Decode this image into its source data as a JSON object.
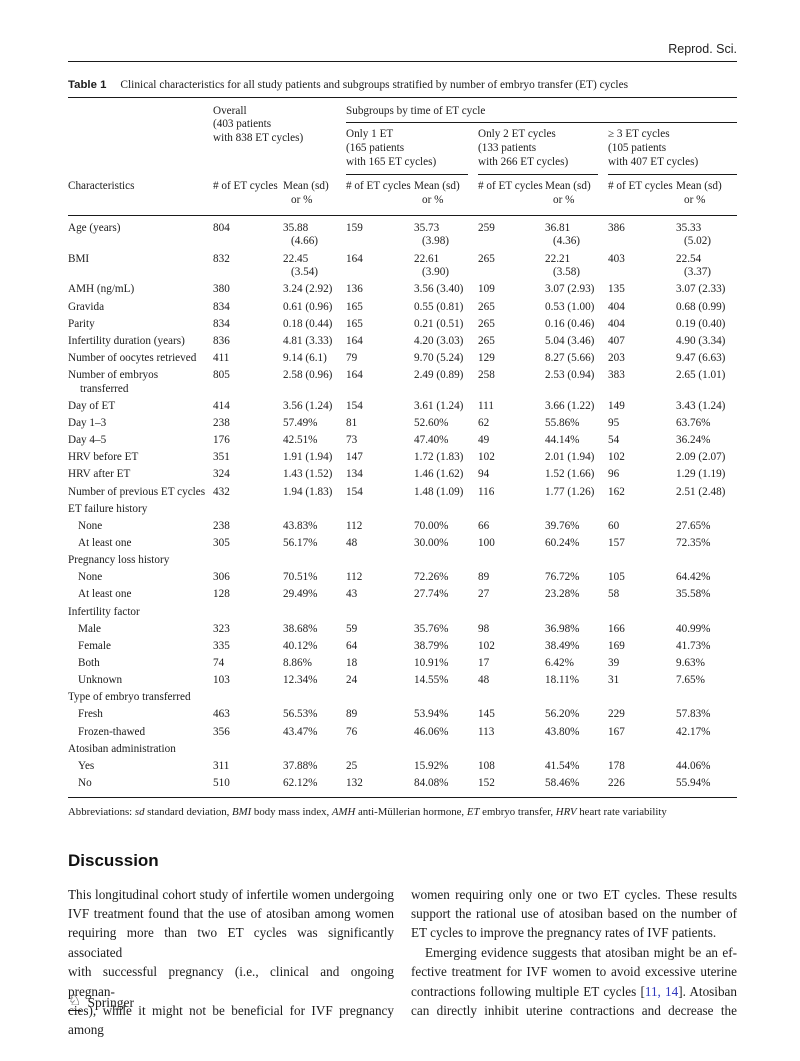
{
  "colors": {
    "citation": "#3038bd",
    "text": "#1c1c1c",
    "rule": "#1a1a1a"
  },
  "header": {
    "journal": "Reprod. Sci."
  },
  "table": {
    "label": "Table 1",
    "caption": "Clinical characteristics for all study patients and subgroups stratified by number of embryo transfer (ET) cycles",
    "overall_header": "Overall\n(403 patients\nwith 838 ET cycles)",
    "subgroups_title": "Subgroups by time of ET cycle",
    "subgroup_headers": [
      "Only 1 ET\n(165 patients\nwith 165 ET cycles)",
      "Only 2 ET cycles\n(133 patients\nwith 266 ET cycles)",
      "≥ 3 ET cycles\n(105 patients\nwith 407 ET cycles)"
    ],
    "characteristics_header": "Characteristics",
    "n_header": "# of ET cycles",
    "mean_header": "Mean (sd)\nor %",
    "rows": [
      {
        "label": "Age (years)",
        "cells": [
          "804",
          "35.88\n(4.66)",
          "159",
          "35.73\n(3.98)",
          "259",
          "36.81\n(4.36)",
          "386",
          "35.33\n(5.02)"
        ]
      },
      {
        "label": "BMI",
        "cells": [
          "832",
          "22.45\n(3.54)",
          "164",
          "22.61\n(3.90)",
          "265",
          "22.21\n(3.58)",
          "403",
          "22.54\n(3.37)"
        ]
      },
      {
        "label": "AMH (ng/mL)",
        "cells": [
          "380",
          "3.24 (2.92)",
          "136",
          "3.56 (3.40)",
          "109",
          "3.07 (2.93)",
          "135",
          "3.07 (2.33)"
        ]
      },
      {
        "label": "Gravida",
        "cells": [
          "834",
          "0.61 (0.96)",
          "165",
          "0.55 (0.81)",
          "265",
          "0.53 (1.00)",
          "404",
          "0.68 (0.99)"
        ]
      },
      {
        "label": "Parity",
        "cells": [
          "834",
          "0.18 (0.44)",
          "165",
          "0.21 (0.51)",
          "265",
          "0.16 (0.46)",
          "404",
          "0.19 (0.40)"
        ]
      },
      {
        "label": "Infertility duration (years)",
        "cells": [
          "836",
          "4.81 (3.33)",
          "164",
          "4.20 (3.03)",
          "265",
          "5.04 (3.46)",
          "407",
          "4.90 (3.34)"
        ]
      },
      {
        "label": "Number of oocytes retrieved",
        "cells": [
          "411",
          "9.14 (6.1)",
          "79",
          "9.70 (5.24)",
          "129",
          "8.27 (5.66)",
          "203",
          "9.47 (6.63)"
        ]
      },
      {
        "label": "Number of embryos\ntransferred",
        "cells": [
          "805",
          "2.58 (0.96)",
          "164",
          "2.49 (0.89)",
          "258",
          "2.53 (0.94)",
          "383",
          "2.65 (1.01)"
        ]
      },
      {
        "label": "Day of ET",
        "cells": [
          "414",
          "3.56 (1.24)",
          "154",
          "3.61 (1.24)",
          "111",
          "3.66 (1.22)",
          "149",
          "3.43 (1.24)"
        ]
      },
      {
        "label": "Day 1–3",
        "cells": [
          "238",
          "57.49%",
          "81",
          "52.60%",
          "62",
          "55.86%",
          "95",
          "63.76%"
        ]
      },
      {
        "label": "Day 4–5",
        "cells": [
          "176",
          "42.51%",
          "73",
          "47.40%",
          "49",
          "44.14%",
          "54",
          "36.24%"
        ]
      },
      {
        "label": "HRV before ET",
        "cells": [
          "351",
          "1.91 (1.94)",
          "147",
          "1.72 (1.83)",
          "102",
          "2.01 (1.94)",
          "102",
          "2.09 (2.07)"
        ]
      },
      {
        "label": "HRV after ET",
        "cells": [
          "324",
          "1.43 (1.52)",
          "134",
          "1.46 (1.62)",
          "94",
          "1.52 (1.66)",
          "96",
          "1.29 (1.19)"
        ]
      },
      {
        "label": "Number of previous ET cycles",
        "cells": [
          "432",
          "1.94 (1.83)",
          "154",
          "1.48 (1.09)",
          "116",
          "1.77 (1.26)",
          "162",
          "2.51 (2.48)"
        ]
      },
      {
        "label": "ET failure history",
        "section": true
      },
      {
        "label": "None",
        "indent": true,
        "cells": [
          "238",
          "43.83%",
          "112",
          "70.00%",
          "66",
          "39.76%",
          "60",
          "27.65%"
        ]
      },
      {
        "label": "At least one",
        "indent": true,
        "cells": [
          "305",
          "56.17%",
          "48",
          "30.00%",
          "100",
          "60.24%",
          "157",
          "72.35%"
        ]
      },
      {
        "label": "Pregnancy loss history",
        "section": true
      },
      {
        "label": "None",
        "indent": true,
        "cells": [
          "306",
          "70.51%",
          "112",
          "72.26%",
          "89",
          "76.72%",
          "105",
          "64.42%"
        ]
      },
      {
        "label": "At least one",
        "indent": true,
        "cells": [
          "128",
          "29.49%",
          "43",
          "27.74%",
          "27",
          "23.28%",
          "58",
          "35.58%"
        ]
      },
      {
        "label": "Infertility factor",
        "section": true
      },
      {
        "label": "Male",
        "indent": true,
        "cells": [
          "323",
          "38.68%",
          "59",
          "35.76%",
          "98",
          "36.98%",
          "166",
          "40.99%"
        ]
      },
      {
        "label": "Female",
        "indent": true,
        "cells": [
          "335",
          "40.12%",
          "64",
          "38.79%",
          "102",
          "38.49%",
          "169",
          "41.73%"
        ]
      },
      {
        "label": "Both",
        "indent": true,
        "cells": [
          "74",
          "8.86%",
          "18",
          "10.91%",
          "17",
          "6.42%",
          "39",
          "9.63%"
        ]
      },
      {
        "label": "Unknown",
        "indent": true,
        "cells": [
          "103",
          "12.34%",
          "24",
          "14.55%",
          "48",
          "18.11%",
          "31",
          "7.65%"
        ]
      },
      {
        "label": "Type of embryo transferred",
        "section": true
      },
      {
        "label": "Fresh",
        "indent": true,
        "cells": [
          "463",
          "56.53%",
          "89",
          "53.94%",
          "145",
          "56.20%",
          "229",
          "57.83%"
        ]
      },
      {
        "label": "Frozen-thawed",
        "indent": true,
        "cells": [
          "356",
          "43.47%",
          "76",
          "46.06%",
          "113",
          "43.80%",
          "167",
          "42.17%"
        ]
      },
      {
        "label": "Atosiban administration",
        "section": true
      },
      {
        "label": "Yes",
        "indent": true,
        "cells": [
          "311",
          "37.88%",
          "25",
          "15.92%",
          "108",
          "41.54%",
          "178",
          "44.06%"
        ]
      },
      {
        "label": "No",
        "indent": true,
        "cells": [
          "510",
          "62.12%",
          "132",
          "84.08%",
          "152",
          "58.46%",
          "226",
          "55.94%"
        ]
      }
    ],
    "footnote_segments": [
      {
        "t": "Abbreviations: "
      },
      {
        "t": "sd",
        "i": true
      },
      {
        "t": " standard deviation, "
      },
      {
        "t": "BMI",
        "i": true
      },
      {
        "t": " body mass index, "
      },
      {
        "t": "AMH",
        "i": true
      },
      {
        "t": " anti-Müllerian hormone, "
      },
      {
        "t": "ET",
        "i": true
      },
      {
        "t": " embryo transfer, "
      },
      {
        "t": "HRV",
        "i": true
      },
      {
        "t": " heart rate variability"
      }
    ]
  },
  "discussion": {
    "heading": "Discussion",
    "left_column_lines": [
      {
        "segs": [
          {
            "t": "This longitudinal cohort study of infertile women undergoing"
          }
        ]
      },
      {
        "segs": [
          {
            "t": "IVF treatment found that the use of atosiban among women"
          }
        ]
      },
      {
        "segs": [
          {
            "t": "requiring more than two ET cycles was significantly associated"
          }
        ]
      },
      {
        "segs": [
          {
            "t": "with successful pregnancy (i.e., clinical and ongoing pregnan-"
          }
        ]
      },
      {
        "segs": [
          {
            "t": "cies), while it might not be beneficial for IVF pregnancy among"
          }
        ]
      }
    ],
    "right_column_lines": [
      {
        "segs": [
          {
            "t": "women requiring only one or two ET cycles. These results"
          }
        ]
      },
      {
        "segs": [
          {
            "t": "support the rational use of atosiban based on the number of"
          }
        ]
      },
      {
        "last": true,
        "segs": [
          {
            "t": "ET cycles to improve the pregnancy rates of IVF patients."
          }
        ]
      },
      {
        "indent": true,
        "segs": [
          {
            "t": "Emerging evidence suggests that atosiban might be an ef-"
          }
        ]
      },
      {
        "segs": [
          {
            "t": "fective treatment for IVF women to avoid excessive uterine"
          }
        ]
      },
      {
        "segs": [
          {
            "t": "contractions following multiple ET cycles ["
          },
          {
            "t": "11, 14",
            "link": true
          },
          {
            "t": "]. Atosiban"
          }
        ]
      },
      {
        "segs": [
          {
            "t": "can directly inhibit uterine contractions and decrease the"
          }
        ]
      }
    ]
  },
  "footer": {
    "publisher": "Springer",
    "logo_icon": "♘"
  }
}
